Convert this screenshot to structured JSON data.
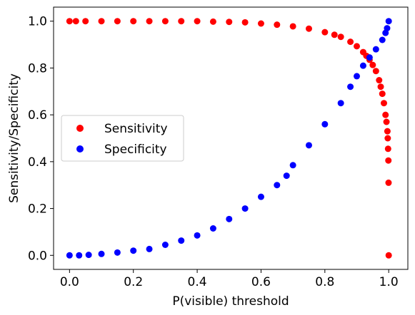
{
  "chart_data": {
    "type": "scatter",
    "title": "",
    "xlabel": "P(visible) threshold",
    "ylabel": "Sensitivity/Specificity",
    "xlim": [
      -0.05,
      1.06
    ],
    "ylim": [
      -0.06,
      1.06
    ],
    "xticks": [
      "0.0",
      "0.2",
      "0.4",
      "0.6",
      "0.8",
      "1.0"
    ],
    "yticks": [
      "0.0",
      "0.2",
      "0.4",
      "0.6",
      "0.8",
      "1.0"
    ],
    "grid": false,
    "legend_position": "center-left",
    "series": [
      {
        "name": "Sensitivity",
        "color": "#ff0000",
        "marker": "circle",
        "points": [
          [
            0.0,
            1.0
          ],
          [
            0.02,
            1.0
          ],
          [
            0.05,
            1.0
          ],
          [
            0.1,
            1.0
          ],
          [
            0.15,
            1.0
          ],
          [
            0.2,
            1.0
          ],
          [
            0.25,
            1.0
          ],
          [
            0.3,
            1.0
          ],
          [
            0.35,
            1.0
          ],
          [
            0.4,
            1.0
          ],
          [
            0.45,
            0.998
          ],
          [
            0.5,
            0.997
          ],
          [
            0.55,
            0.995
          ],
          [
            0.6,
            0.99
          ],
          [
            0.65,
            0.985
          ],
          [
            0.7,
            0.978
          ],
          [
            0.75,
            0.968
          ],
          [
            0.8,
            0.953
          ],
          [
            0.83,
            0.942
          ],
          [
            0.85,
            0.933
          ],
          [
            0.88,
            0.912
          ],
          [
            0.9,
            0.893
          ],
          [
            0.92,
            0.868
          ],
          [
            0.93,
            0.852
          ],
          [
            0.94,
            0.835
          ],
          [
            0.95,
            0.813
          ],
          [
            0.96,
            0.787
          ],
          [
            0.97,
            0.748
          ],
          [
            0.975,
            0.72
          ],
          [
            0.98,
            0.69
          ],
          [
            0.985,
            0.65
          ],
          [
            0.99,
            0.6
          ],
          [
            0.993,
            0.57
          ],
          [
            0.996,
            0.53
          ],
          [
            0.997,
            0.5
          ],
          [
            0.998,
            0.455
          ],
          [
            0.999,
            0.405
          ],
          [
            0.9995,
            0.31
          ],
          [
            1.0,
            0.0
          ]
        ]
      },
      {
        "name": "Specificity",
        "color": "#0000ff",
        "marker": "circle",
        "points": [
          [
            0.0,
            0.0
          ],
          [
            0.03,
            0.0
          ],
          [
            0.06,
            0.002
          ],
          [
            0.1,
            0.006
          ],
          [
            0.15,
            0.012
          ],
          [
            0.2,
            0.02
          ],
          [
            0.25,
            0.027
          ],
          [
            0.3,
            0.045
          ],
          [
            0.35,
            0.063
          ],
          [
            0.4,
            0.085
          ],
          [
            0.45,
            0.115
          ],
          [
            0.5,
            0.155
          ],
          [
            0.55,
            0.2
          ],
          [
            0.6,
            0.25
          ],
          [
            0.65,
            0.3
          ],
          [
            0.68,
            0.34
          ],
          [
            0.7,
            0.385
          ],
          [
            0.75,
            0.47
          ],
          [
            0.8,
            0.56
          ],
          [
            0.85,
            0.65
          ],
          [
            0.88,
            0.72
          ],
          [
            0.9,
            0.765
          ],
          [
            0.92,
            0.81
          ],
          [
            0.94,
            0.845
          ],
          [
            0.96,
            0.88
          ],
          [
            0.98,
            0.92
          ],
          [
            0.99,
            0.95
          ],
          [
            0.995,
            0.97
          ],
          [
            1.0,
            1.0
          ]
        ]
      }
    ]
  }
}
